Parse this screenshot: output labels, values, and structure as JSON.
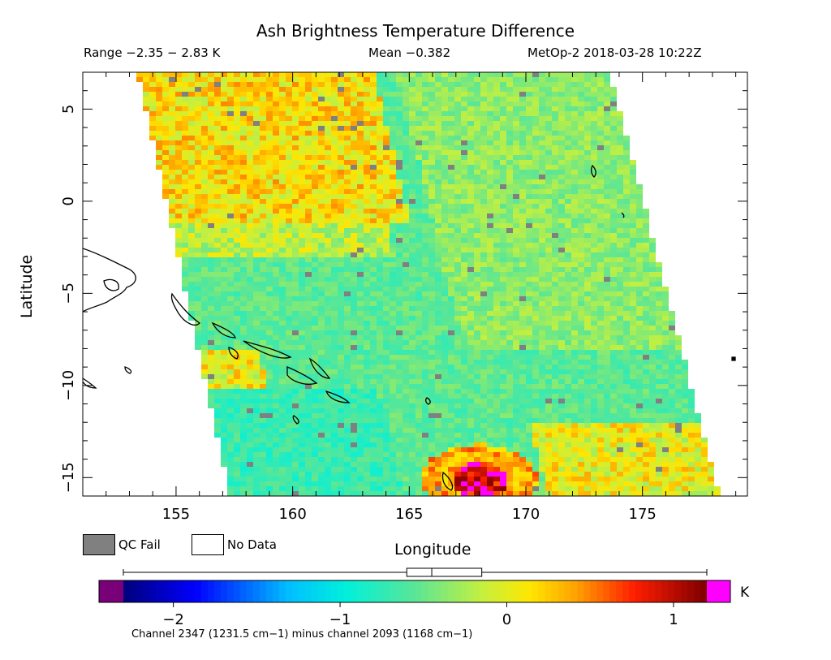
{
  "chart_data": {
    "type": "heatmap",
    "title": "Ash Brightness Temperature Difference",
    "range_text": "Range −2.35 − 2.83 K",
    "mean_text": "Mean −0.382",
    "source_text": "MetOp-2 2018-03-28 10:22Z",
    "xlabel": "Longitude",
    "ylabel": "Latitude",
    "xlim": [
      151,
      179.5
    ],
    "ylim": [
      -16,
      7
    ],
    "x_ticks": [
      155,
      160,
      165,
      170,
      175
    ],
    "y_ticks": [
      5,
      0,
      -5,
      -10,
      -15
    ],
    "swath_longitudes": {
      "top_lat": 7,
      "top_west": 153.5,
      "top_east": 173.5,
      "bottom_lat": -16,
      "bottom_west": 157.5,
      "bottom_east": 178.2
    },
    "hotspot": {
      "lon": 168,
      "lat": -15,
      "label": "high values (magenta)"
    },
    "grid": false,
    "legend": {
      "qc_fail_label": "QC Fail",
      "no_data_label": "No Data",
      "qc_fail_color": "#808080",
      "no_data_color": "#ffffff"
    },
    "colorbar": {
      "unit": "K",
      "vmin": -2.3,
      "vmax": 1.2,
      "ticks": [
        -2,
        -1,
        0,
        1
      ],
      "tick_labels": [
        "−2",
        "−1",
        "0",
        "1"
      ],
      "underflow_color": "#7a007a",
      "overflow_color": "#ff00ff",
      "box_whisker": {
        "min": -2.35,
        "q1": -0.6,
        "median": -0.45,
        "q3": -0.15,
        "max": 2.83
      },
      "caption": "Channel 2347 (1231.5 cm−1) minus channel 2093 (1168 cm−1)"
    }
  }
}
